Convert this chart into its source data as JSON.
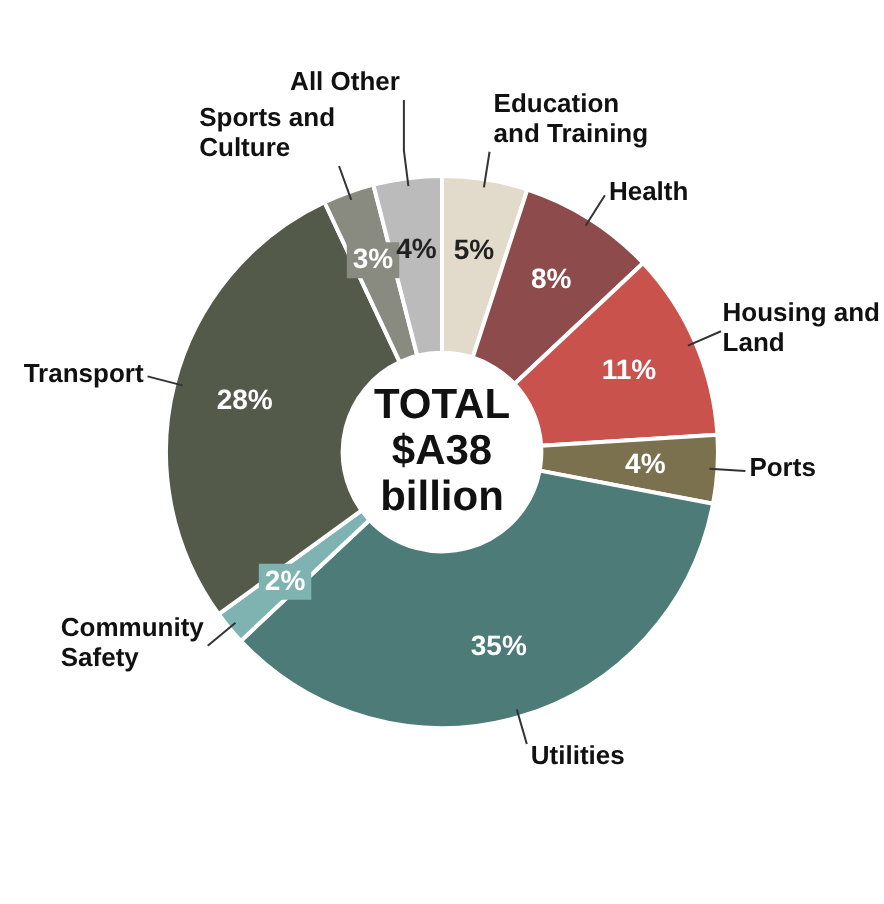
{
  "chart_data": {
    "type": "donut",
    "categories": [
      "Education and Training",
      "Health",
      "Housing and Land",
      "Ports",
      "Utilities",
      "Community Safety",
      "Transport",
      "Sports and Culture",
      "All Other"
    ],
    "values": [
      5,
      8,
      11,
      4,
      35,
      2,
      28,
      3,
      4
    ],
    "value_labels": [
      "5%",
      "8%",
      "11%",
      "4%",
      "35%",
      "2%",
      "28%",
      "3%",
      "4%"
    ],
    "colors": [
      "#e2dacb",
      "#8e4b4c",
      "#c9524c",
      "#7c714f",
      "#4c7b78",
      "#7eb3b1",
      "#535a4a",
      "#8a8b80",
      "#bbbbbb"
    ],
    "annotations": [
      "TOTAL $A38 billion"
    ],
    "legend": false
  }
}
